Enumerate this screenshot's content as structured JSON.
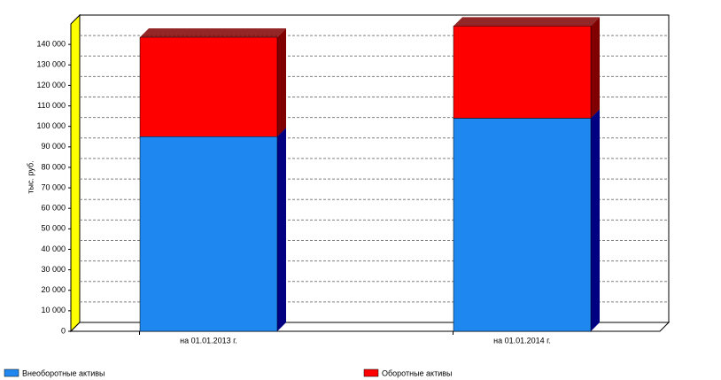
{
  "chart_data": {
    "type": "bar3d_stacked",
    "y_label": "тыс. руб.",
    "categories": [
      "на 01.01.2013 г.",
      "на 01.01.2014 г."
    ],
    "series": [
      {
        "name": "Внеоборотные активы",
        "color": "#1e88f0",
        "side_color": "#000080",
        "values": [
          95000,
          104000
        ]
      },
      {
        "name": "Оборотные активы",
        "color": "#ff0000",
        "side_color": "#800000",
        "values": [
          48500,
          45000
        ]
      }
    ],
    "ylim": [
      0,
      150000
    ],
    "yticks": [
      0,
      {
        "value": 10000,
        "label": "10 000"
      },
      {
        "value": 20000,
        "label": "20 000"
      },
      {
        "value": 30000,
        "label": "30 000"
      },
      {
        "value": 40000,
        "label": "40 000"
      },
      {
        "value": 50000,
        "label": "50 000"
      },
      {
        "value": 60000,
        "label": "60 000"
      },
      {
        "value": 70000,
        "label": "70 000"
      },
      {
        "value": 80000,
        "label": "80 000"
      },
      {
        "value": 90000,
        "label": "90 000"
      },
      {
        "value": 100000,
        "label": "100 000"
      },
      {
        "value": 110000,
        "label": "110 000"
      },
      {
        "value": 120000,
        "label": "120 000"
      },
      {
        "value": 130000,
        "label": "130 000"
      },
      {
        "value": 140000,
        "label": "140 000"
      }
    ],
    "grid": true
  }
}
